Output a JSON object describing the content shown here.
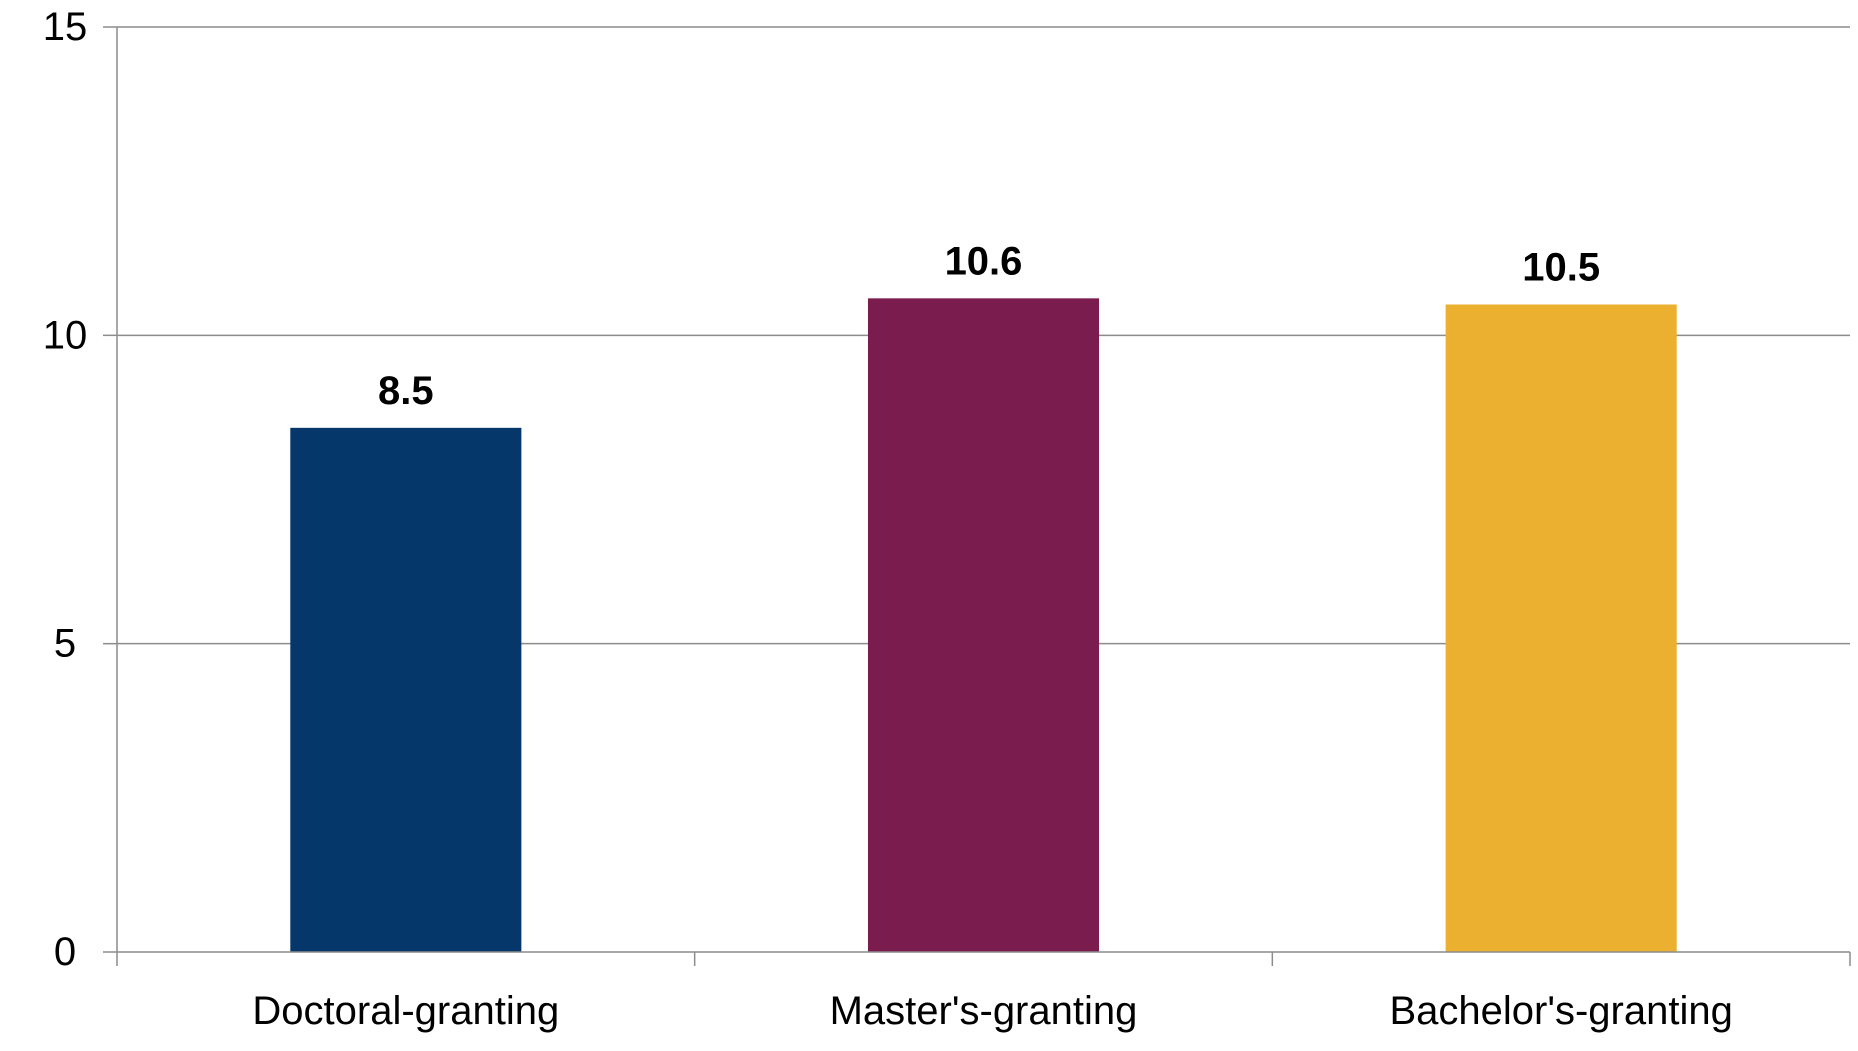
{
  "chart_data": {
    "type": "bar",
    "categories": [
      "Doctoral-granting",
      "Master's-granting",
      "Bachelor's-granting"
    ],
    "values": [
      8.5,
      10.6,
      10.5
    ],
    "data_labels": [
      "8.5",
      "10.6",
      "10.5"
    ],
    "colors": [
      "#05376A",
      "#7B1C4F",
      "#EBB030"
    ],
    "ylim": [
      0,
      15
    ],
    "yticks": [
      0,
      5,
      10,
      15
    ],
    "ytick_labels": [
      "0",
      "5",
      "10",
      "15"
    ],
    "grid": true,
    "legend": "none"
  }
}
